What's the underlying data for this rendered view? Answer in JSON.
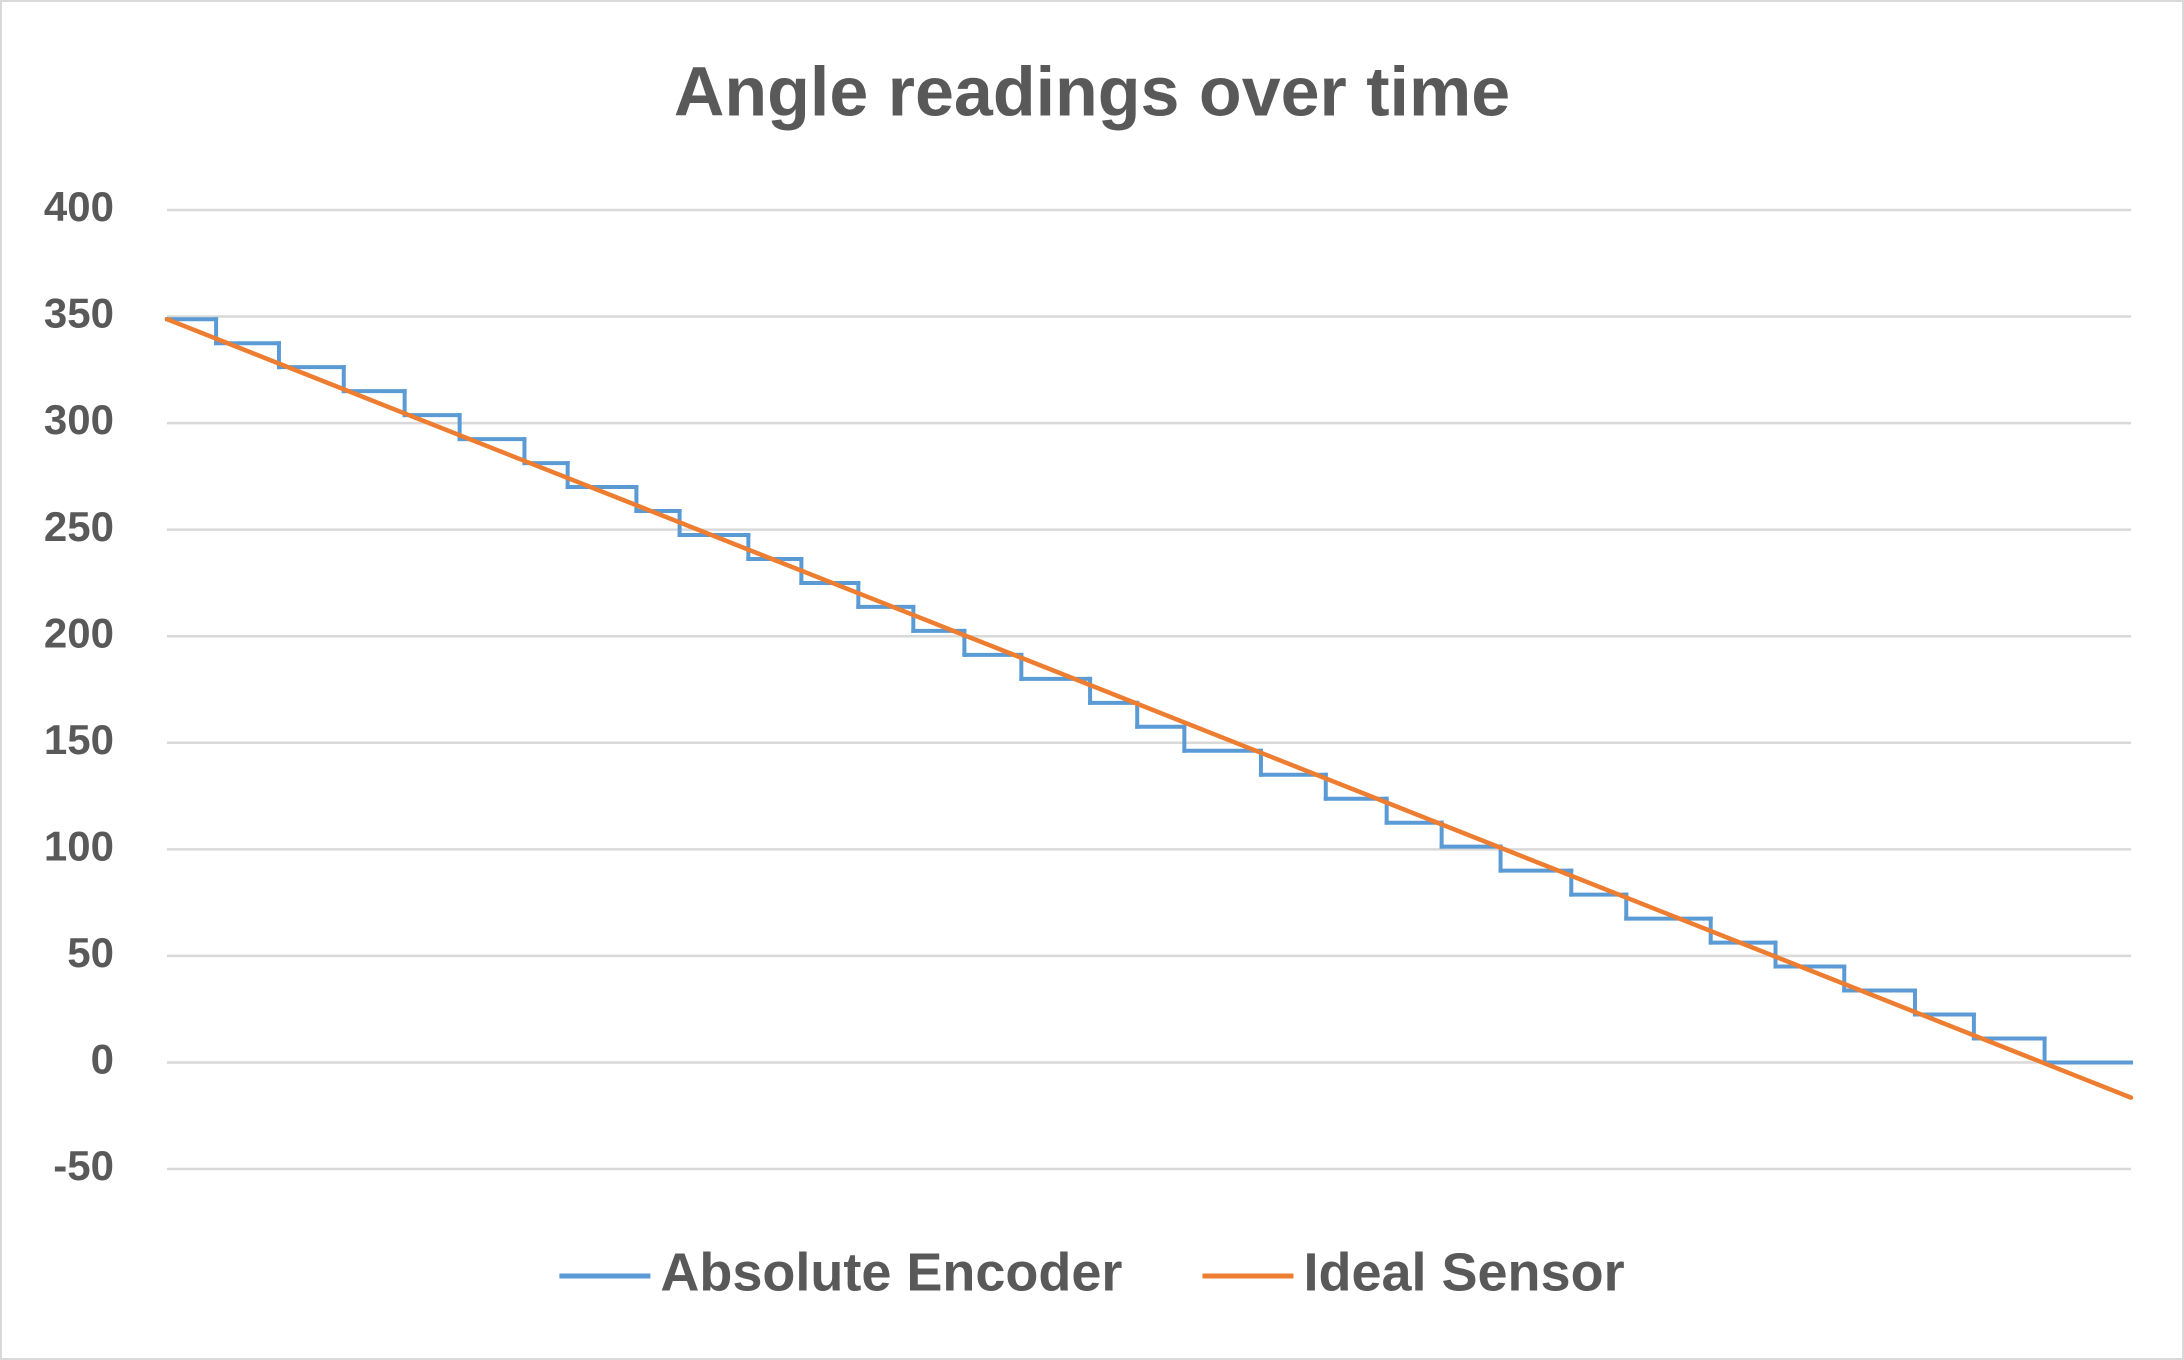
{
  "chart_data": {
    "type": "line",
    "title": "Angle readings over time",
    "xlim": [
      0,
      100
    ],
    "ylim": [
      -50,
      400
    ],
    "yticks": [
      -50,
      0,
      50,
      100,
      150,
      200,
      250,
      300,
      350,
      400
    ],
    "grid": true,
    "legend": "bottom",
    "series": [
      {
        "name": "Absolute Encoder",
        "color": "#5b9bd5",
        "step": "post",
        "x": [
          0,
          2.5,
          5.7,
          9.0,
          12.1,
          14.9,
          18.2,
          20.4,
          23.9,
          26.1,
          29.6,
          32.3,
          35.2,
          38.0,
          40.6,
          43.5,
          47.0,
          49.4,
          51.8,
          55.7,
          59.0,
          62.1,
          64.9,
          67.9,
          71.5,
          74.3,
          78.6,
          81.9,
          85.4,
          89.0,
          92.0,
          95.6,
          100
        ],
        "values": [
          348.75,
          337.5,
          326.25,
          315,
          303.75,
          292.5,
          281.25,
          270,
          258.75,
          247.5,
          236.25,
          225,
          213.75,
          202.5,
          191.25,
          180,
          168.75,
          157.5,
          146.25,
          135,
          123.75,
          112.5,
          101.25,
          90,
          78.75,
          67.5,
          56.25,
          45,
          33.75,
          22.5,
          11.25,
          0,
          0
        ]
      },
      {
        "name": "Ideal Sensor",
        "color": "#ed7d31",
        "x": [
          0,
          100
        ],
        "values": [
          348.75,
          -16.5
        ]
      }
    ]
  }
}
